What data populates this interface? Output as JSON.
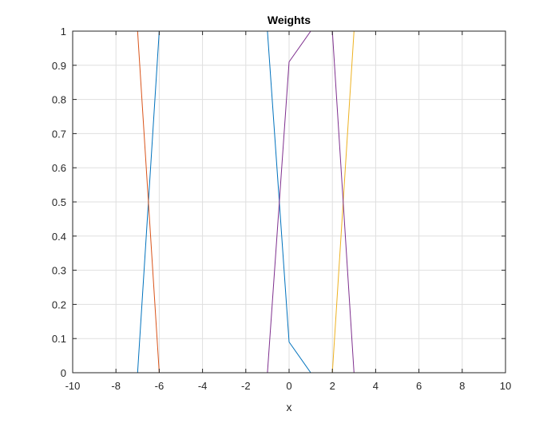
{
  "chart_data": {
    "type": "line",
    "title": "Weights",
    "xlabel": "x",
    "ylabel": "",
    "xlim": [
      -10,
      10
    ],
    "ylim": [
      0,
      1
    ],
    "xticks": [
      -10,
      -8,
      -6,
      -4,
      -2,
      0,
      2,
      4,
      6,
      8,
      10
    ],
    "yticks": [
      0,
      0.1,
      0.2,
      0.3,
      0.4,
      0.5,
      0.6,
      0.7,
      0.8,
      0.9,
      1
    ],
    "xtick_labels": [
      "-10",
      "-8",
      "-6",
      "-4",
      "-2",
      "0",
      "2",
      "4",
      "6",
      "8",
      "10"
    ],
    "ytick_labels": [
      "0",
      "0.1",
      "0.2",
      "0.3",
      "0.4",
      "0.5",
      "0.6",
      "0.7",
      "0.8",
      "0.9",
      "1"
    ],
    "grid": true,
    "box": true,
    "series": [
      {
        "color": "#0072BD",
        "x": [
          -10,
          -7,
          -6,
          -1,
          0,
          1,
          10
        ],
        "y": [
          0,
          0,
          1,
          1,
          0.09,
          0,
          0
        ]
      },
      {
        "color": "#D95319",
        "x": [
          -10,
          -7,
          -6,
          10
        ],
        "y": [
          1,
          1,
          0,
          0
        ]
      },
      {
        "color": "#EDB120",
        "x": [
          -10,
          2,
          3,
          10
        ],
        "y": [
          0,
          0,
          1,
          1
        ]
      },
      {
        "color": "#7E2F8E",
        "x": [
          -10,
          -1,
          0,
          1,
          2,
          3,
          10
        ],
        "y": [
          0,
          0,
          0.91,
          1,
          1,
          0,
          0
        ]
      }
    ]
  }
}
